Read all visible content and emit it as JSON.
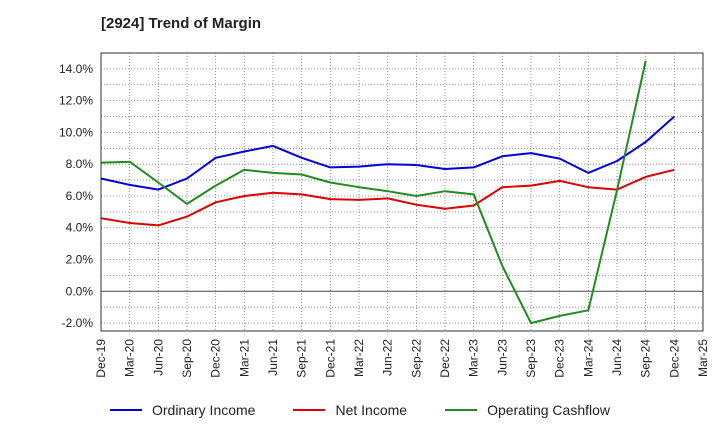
{
  "chart_data": {
    "type": "line",
    "title": "[2924]  Trend of Margin",
    "categories": [
      "Dec-19",
      "Mar-20",
      "Jun-20",
      "Sep-20",
      "Dec-20",
      "Mar-21",
      "Jun-21",
      "Sep-21",
      "Dec-21",
      "Mar-22",
      "Jun-22",
      "Sep-22",
      "Dec-22",
      "Mar-23",
      "Jun-23",
      "Sep-23",
      "Dec-23",
      "Mar-24",
      "Jun-24",
      "Sep-24",
      "Dec-24",
      "Mar-25"
    ],
    "ylim": [
      -2.5,
      15.0
    ],
    "yticks": [
      -2.0,
      0.0,
      2.0,
      4.0,
      6.0,
      8.0,
      10.0,
      12.0,
      14.0
    ],
    "ytick_labels": [
      "-2.0%",
      "0.0%",
      "2.0%",
      "4.0%",
      "6.0%",
      "8.0%",
      "10.0%",
      "12.0%",
      "14.0%"
    ],
    "grid": true,
    "legend_position": "bottom",
    "series": [
      {
        "name": "Ordinary Income",
        "color": "#0000dd",
        "values": [
          7.1,
          6.7,
          6.4,
          7.1,
          8.4,
          8.8,
          9.15,
          8.4,
          7.8,
          7.85,
          8.0,
          7.95,
          7.7,
          7.8,
          8.5,
          8.7,
          8.35,
          7.45,
          8.2,
          9.4,
          11.0,
          null
        ]
      },
      {
        "name": "Net Income",
        "color": "#dd0000",
        "values": [
          4.6,
          4.3,
          4.15,
          4.7,
          5.6,
          6.0,
          6.2,
          6.1,
          5.8,
          5.75,
          5.85,
          5.45,
          5.2,
          5.4,
          6.55,
          6.65,
          6.95,
          6.55,
          6.4,
          7.2,
          7.65,
          null
        ]
      },
      {
        "name": "Operating Cashflow",
        "color": "#228B22",
        "values": [
          8.1,
          8.15,
          6.85,
          5.5,
          6.65,
          7.65,
          7.45,
          7.35,
          6.85,
          6.55,
          6.3,
          6.0,
          6.3,
          6.1,
          1.6,
          -2.0,
          -1.55,
          -1.2,
          6.35,
          14.5,
          null,
          null
        ]
      }
    ]
  }
}
